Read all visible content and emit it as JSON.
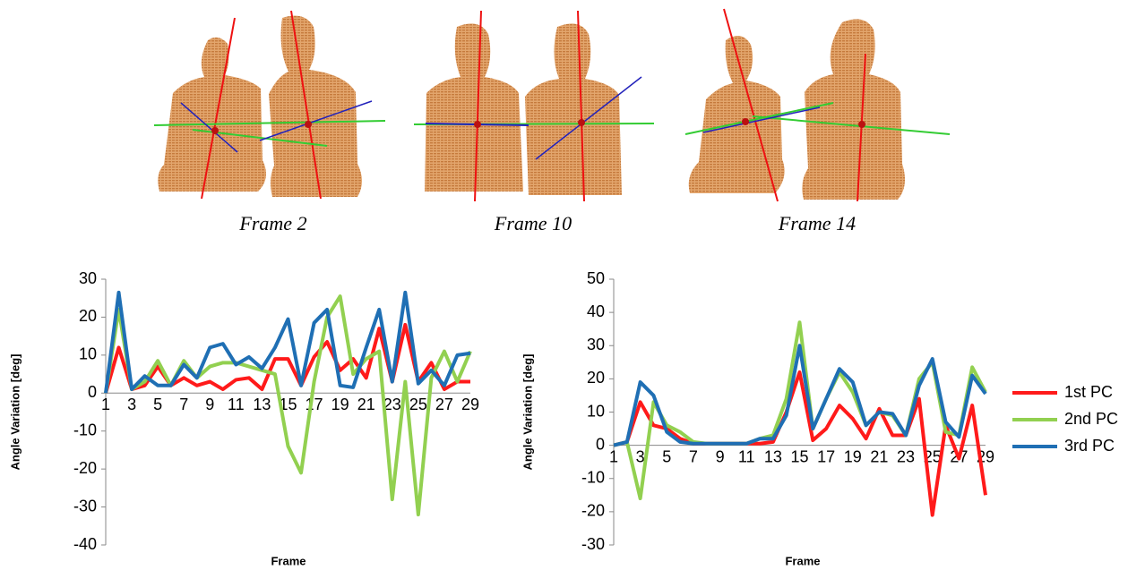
{
  "figures": [
    {
      "caption": "Frame 2"
    },
    {
      "caption": "Frame 10"
    },
    {
      "caption": "Frame 14"
    }
  ],
  "chart_data": [
    {
      "type": "line",
      "x_label": "Frame",
      "y_label": "Angle Variation [deg]",
      "categories": [
        1,
        null,
        3,
        null,
        5,
        null,
        7,
        null,
        9,
        null,
        11,
        null,
        13,
        null,
        15,
        null,
        17,
        null,
        19,
        null,
        21,
        null,
        23,
        null,
        25,
        null,
        27,
        null,
        29
      ],
      "ylim": [
        -40,
        30
      ],
      "yticks": [
        -40,
        -30,
        -20,
        -10,
        0,
        10,
        20,
        30
      ],
      "series": [
        {
          "color": "#ff1a1a",
          "values": [
            0,
            12,
            1,
            2,
            7,
            2,
            4,
            2,
            3,
            1,
            3.5,
            4,
            1,
            9,
            9,
            2,
            9.5,
            13.5,
            6,
            9,
            4,
            17,
            3,
            18,
            3,
            8,
            1,
            3,
            3
          ]
        },
        {
          "color": "#92d050",
          "values": [
            0,
            22,
            1,
            3,
            8.5,
            2,
            8.5,
            4,
            7,
            8,
            8,
            7,
            6,
            5,
            -14,
            -21,
            3,
            20,
            25.5,
            5,
            9,
            11,
            -28,
            3,
            -32,
            4,
            11,
            3,
            11
          ]
        },
        {
          "color": "#1f6fb4",
          "values": [
            0,
            26.5,
            1,
            4.5,
            2,
            2,
            7.5,
            4,
            12,
            13,
            7.5,
            9.5,
            6.5,
            12,
            19.5,
            2,
            18.5,
            22,
            2,
            1.5,
            12,
            22,
            3,
            26.5,
            2.5,
            6,
            2,
            10,
            10.5
          ]
        }
      ]
    },
    {
      "type": "line",
      "x_label": "Frame",
      "y_label": "Angle Variation [deg]",
      "categories": [
        1,
        null,
        3,
        null,
        5,
        null,
        7,
        null,
        9,
        null,
        11,
        null,
        13,
        null,
        15,
        null,
        17,
        null,
        19,
        null,
        21,
        null,
        23,
        null,
        25,
        null,
        27,
        null,
        29
      ],
      "ylim": [
        -30,
        50
      ],
      "yticks": [
        -30,
        -20,
        -10,
        0,
        10,
        20,
        30,
        40,
        50
      ],
      "legend": "right",
      "series": [
        {
          "name": "1st PC",
          "color": "#ff1a1a",
          "values": [
            0,
            1,
            13,
            6,
            5,
            2,
            0.5,
            0.5,
            0.5,
            0.5,
            0.5,
            0.5,
            1,
            10,
            22,
            1.5,
            5,
            12,
            8,
            2,
            11,
            3,
            3,
            14,
            -21,
            6,
            -4,
            12,
            -15
          ]
        },
        {
          "name": "2nd PC",
          "color": "#92d050",
          "values": [
            0,
            1,
            -16,
            13,
            6,
            4,
            1,
            0.5,
            0.5,
            0.5,
            0.5,
            2,
            3,
            14,
            37,
            5,
            14,
            22,
            16,
            6,
            10,
            9,
            3,
            20,
            25,
            4,
            3,
            23.5,
            16
          ]
        },
        {
          "name": "3rd PC",
          "color": "#1f6fb4",
          "values": [
            0,
            1,
            19,
            15,
            4,
            1,
            0.5,
            0.5,
            0.5,
            0.5,
            0.5,
            2,
            2,
            9,
            30,
            5,
            14,
            23,
            19,
            6,
            10,
            9.5,
            3,
            18,
            26,
            7,
            2.5,
            21,
            15.5
          ]
        }
      ]
    }
  ]
}
